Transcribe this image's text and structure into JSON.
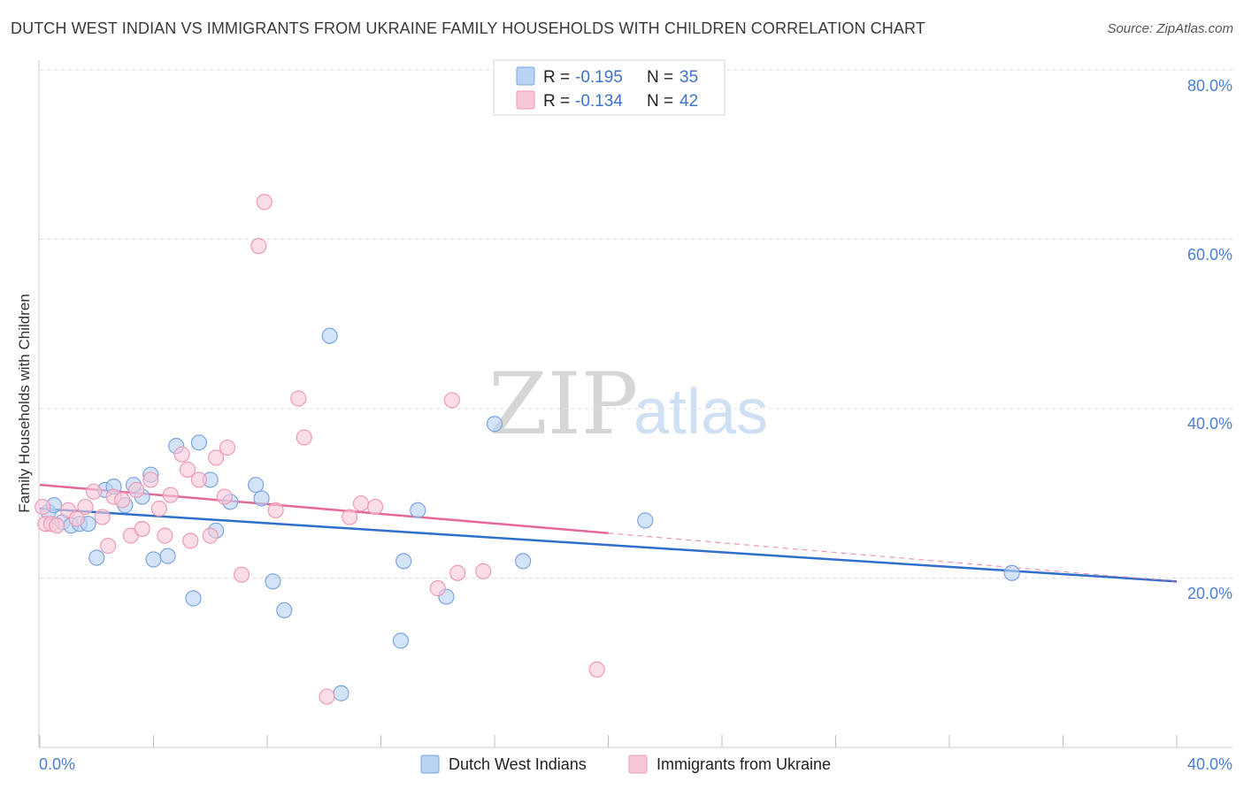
{
  "title": "DUTCH WEST INDIAN VS IMMIGRANTS FROM UKRAINE FAMILY HOUSEHOLDS WITH CHILDREN CORRELATION CHART",
  "source": "Source: ZipAtlas.com",
  "watermark": {
    "part1": "ZIP",
    "part2": "atlas"
  },
  "colors": {
    "blue_fill": "#b9d3f3",
    "blue_stroke": "#7aa5e0",
    "blue_line": "#2f6fcb",
    "pink_fill": "#f8c8d8",
    "pink_stroke": "#ee9ab6",
    "pink_line": "#e4689a",
    "tick_text": "#4a7fd0",
    "grid": "#dcdcdc"
  },
  "legend_top": {
    "rows": [
      {
        "r_label": "R =",
        "r_value": "-0.195",
        "n_label": "N =",
        "n_value": "35",
        "series": "blue"
      },
      {
        "r_label": "R =",
        "r_value": "-0.134",
        "n_label": "N =",
        "n_value": "42",
        "series": "pink"
      }
    ]
  },
  "chart_data": {
    "type": "scatter",
    "title": "DUTCH WEST INDIAN VS IMMIGRANTS FROM UKRAINE FAMILY HOUSEHOLDS WITH CHILDREN CORRELATION CHART",
    "xlabel": "",
    "ylabel": "Family Households with Children",
    "xlim": [
      0,
      40
    ],
    "ylim": [
      0,
      80
    ],
    "x_tick_labels": [
      "0.0%",
      "40.0%"
    ],
    "y_ticks": [
      20,
      40,
      60,
      80
    ],
    "y_tick_labels": [
      "20.0%",
      "40.0%",
      "60.0%",
      "80.0%"
    ],
    "grid": true,
    "series": [
      {
        "name": "Dutch West Indians",
        "color": "blue",
        "trend": {
          "x": [
            0,
            40
          ],
          "y": [
            28.2,
            19.6
          ],
          "dashed_after": null
        },
        "points": [
          [
            0.3,
            27.8
          ],
          [
            0.5,
            28.6
          ],
          [
            0.8,
            26.6
          ],
          [
            1.1,
            26.2
          ],
          [
            1.4,
            26.4
          ],
          [
            1.7,
            26.4
          ],
          [
            2.0,
            22.4
          ],
          [
            2.3,
            30.4
          ],
          [
            2.6,
            30.8
          ],
          [
            3.0,
            28.6
          ],
          [
            3.3,
            31.0
          ],
          [
            3.6,
            29.6
          ],
          [
            3.9,
            32.2
          ],
          [
            4.0,
            22.2
          ],
          [
            4.5,
            22.6
          ],
          [
            4.8,
            35.6
          ],
          [
            5.4,
            17.6
          ],
          [
            5.6,
            36.0
          ],
          [
            6.0,
            31.6
          ],
          [
            6.2,
            25.6
          ],
          [
            6.7,
            29.0
          ],
          [
            7.6,
            31.0
          ],
          [
            7.8,
            29.4
          ],
          [
            8.2,
            19.6
          ],
          [
            8.6,
            16.2
          ],
          [
            10.2,
            48.6
          ],
          [
            10.6,
            6.4
          ],
          [
            12.7,
            12.6
          ],
          [
            12.8,
            22.0
          ],
          [
            13.3,
            28.0
          ],
          [
            14.3,
            17.8
          ],
          [
            16.0,
            38.2
          ],
          [
            17.0,
            22.0
          ],
          [
            21.3,
            26.8
          ],
          [
            34.2,
            20.6
          ]
        ]
      },
      {
        "name": "Immigrants from Ukraine",
        "color": "pink",
        "trend": {
          "x": [
            0,
            40
          ],
          "y": [
            31.0,
            19.6
          ],
          "solid_until_x": 20
        },
        "points": [
          [
            0.1,
            28.4
          ],
          [
            0.2,
            26.4
          ],
          [
            0.4,
            26.4
          ],
          [
            0.6,
            26.2
          ],
          [
            1.0,
            28.0
          ],
          [
            1.3,
            27.0
          ],
          [
            1.6,
            28.4
          ],
          [
            1.9,
            30.2
          ],
          [
            2.2,
            27.2
          ],
          [
            2.4,
            23.8
          ],
          [
            2.6,
            29.6
          ],
          [
            2.9,
            29.2
          ],
          [
            3.2,
            25.0
          ],
          [
            3.4,
            30.4
          ],
          [
            3.6,
            25.8
          ],
          [
            3.9,
            31.6
          ],
          [
            4.2,
            28.2
          ],
          [
            4.4,
            25.0
          ],
          [
            4.6,
            29.8
          ],
          [
            5.0,
            34.6
          ],
          [
            5.2,
            32.8
          ],
          [
            5.3,
            24.4
          ],
          [
            5.6,
            31.6
          ],
          [
            6.0,
            25.0
          ],
          [
            6.2,
            34.2
          ],
          [
            6.5,
            29.6
          ],
          [
            6.6,
            35.4
          ],
          [
            7.1,
            20.4
          ],
          [
            7.7,
            59.2
          ],
          [
            7.9,
            64.4
          ],
          [
            8.3,
            28.0
          ],
          [
            9.1,
            41.2
          ],
          [
            9.3,
            36.6
          ],
          [
            10.1,
            6.0
          ],
          [
            10.9,
            27.2
          ],
          [
            11.3,
            28.8
          ],
          [
            11.8,
            28.4
          ],
          [
            14.0,
            18.8
          ],
          [
            14.5,
            41.0
          ],
          [
            14.7,
            20.6
          ],
          [
            15.6,
            20.8
          ],
          [
            19.6,
            9.2
          ]
        ]
      }
    ]
  },
  "legend_bottom": {
    "items": [
      {
        "label": "Dutch West Indians",
        "series": "blue"
      },
      {
        "label": "Immigrants from Ukraine",
        "series": "pink"
      }
    ]
  }
}
